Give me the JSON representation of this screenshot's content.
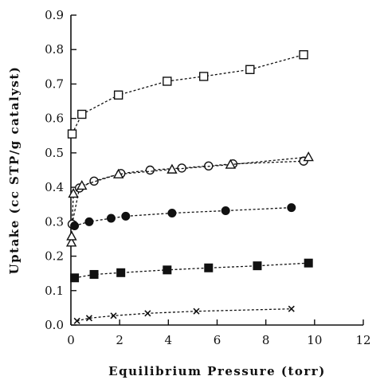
{
  "chart_data": {
    "type": "scatter",
    "title": "",
    "xlabel": "Equilibrium Pressure (torr)",
    "ylabel": "Uptake (cc STP/g catalyst)",
    "xlim": [
      0,
      12
    ],
    "ylim": [
      0,
      0.9
    ],
    "xticks": [
      0,
      2,
      4,
      6,
      8,
      10,
      12
    ],
    "yticks": [
      0.0,
      0.1,
      0.2,
      0.3,
      0.4,
      0.5,
      0.6,
      0.7,
      0.8,
      0.9
    ],
    "xtick_labels": [
      "0",
      "2",
      "4",
      "6",
      "8",
      "10",
      "12"
    ],
    "ytick_labels": [
      "0.0",
      "0.1",
      "0.2",
      "0.3",
      "0.4",
      "0.5",
      "0.6",
      "0.7",
      "0.8",
      "0.9"
    ],
    "grid": false,
    "legend": false,
    "series": [
      {
        "marker": "open-square",
        "line": "dashed",
        "points": [
          [
            0.05,
            0.555
          ],
          [
            0.45,
            0.612
          ],
          [
            1.95,
            0.668
          ],
          [
            3.95,
            0.708
          ],
          [
            5.45,
            0.722
          ],
          [
            7.35,
            0.742
          ],
          [
            9.55,
            0.785
          ]
        ]
      },
      {
        "marker": "open-circle",
        "line": "dashed",
        "points": [
          [
            0.05,
            0.293
          ],
          [
            0.35,
            0.398
          ],
          [
            0.95,
            0.418
          ],
          [
            2.05,
            0.44
          ],
          [
            3.25,
            0.45
          ],
          [
            4.55,
            0.456
          ],
          [
            5.65,
            0.462
          ],
          [
            6.65,
            0.468
          ],
          [
            9.55,
            0.476
          ]
        ]
      },
      {
        "marker": "open-triangle",
        "line": "dashed",
        "points": [
          [
            0.02,
            0.24
          ],
          [
            0.03,
            0.258
          ],
          [
            0.1,
            0.382
          ],
          [
            0.45,
            0.405
          ],
          [
            1.95,
            0.438
          ],
          [
            4.15,
            0.452
          ],
          [
            6.55,
            0.466
          ],
          [
            9.75,
            0.488
          ]
        ]
      },
      {
        "marker": "filled-circle",
        "line": "dashed",
        "points": [
          [
            0.15,
            0.288
          ],
          [
            0.75,
            0.3
          ],
          [
            1.65,
            0.31
          ],
          [
            2.25,
            0.316
          ],
          [
            4.15,
            0.325
          ],
          [
            6.35,
            0.332
          ],
          [
            9.05,
            0.341
          ]
        ]
      },
      {
        "marker": "filled-square",
        "line": "dashed",
        "points": [
          [
            0.15,
            0.137
          ],
          [
            0.95,
            0.147
          ],
          [
            2.05,
            0.152
          ],
          [
            3.95,
            0.16
          ],
          [
            5.65,
            0.166
          ],
          [
            7.65,
            0.172
          ],
          [
            9.75,
            0.18
          ]
        ]
      },
      {
        "marker": "x",
        "line": "dashed",
        "points": [
          [
            0.25,
            0.012
          ],
          [
            0.75,
            0.02
          ],
          [
            1.75,
            0.027
          ],
          [
            3.15,
            0.034
          ],
          [
            5.15,
            0.04
          ],
          [
            9.05,
            0.047
          ]
        ]
      }
    ]
  }
}
